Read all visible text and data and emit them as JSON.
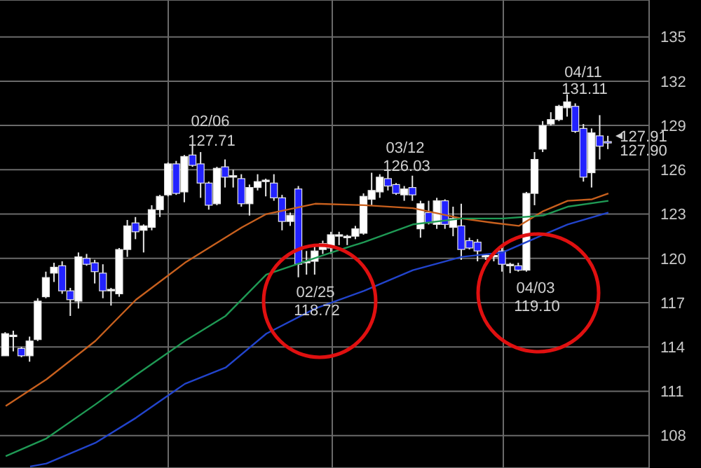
{
  "chart_data": {
    "type": "candlestick",
    "categories": [
      null,
      null,
      null,
      null,
      null,
      null,
      null,
      null,
      null,
      null,
      null,
      null,
      null,
      null,
      null,
      null,
      null,
      null,
      null,
      null,
      null,
      null,
      null,
      null,
      null,
      null,
      null,
      null,
      null,
      null,
      null,
      null,
      null,
      null,
      null,
      null,
      null,
      null,
      null,
      null,
      null,
      null,
      null,
      null,
      null,
      null,
      null,
      null,
      null,
      null,
      null,
      null,
      null,
      null,
      null,
      null,
      null,
      null,
      null,
      null,
      null,
      null,
      null,
      null,
      null,
      null,
      null,
      null,
      null,
      null,
      null,
      null,
      null,
      null,
      null
    ],
    "ohlc": [
      [
        113.4,
        115.0,
        113.4,
        114.9
      ],
      [
        114.7,
        115.1,
        113.7,
        114.8
      ],
      [
        113.9,
        114.0,
        113.3,
        113.4
      ],
      [
        113.4,
        114.7,
        113.0,
        114.4
      ],
      [
        114.5,
        117.3,
        114.4,
        117.1
      ],
      [
        117.4,
        119.1,
        117.3,
        118.7
      ],
      [
        119.0,
        119.7,
        118.4,
        119.4
      ],
      [
        119.5,
        119.8,
        117.6,
        117.8
      ],
      [
        117.8,
        118.0,
        116.1,
        117.2
      ],
      [
        117.1,
        120.4,
        116.6,
        120.1
      ],
      [
        120.0,
        120.3,
        119.5,
        119.6
      ],
      [
        119.7,
        119.9,
        118.3,
        119.1
      ],
      [
        119.0,
        119.6,
        117.3,
        117.8
      ],
      [
        117.8,
        118.0,
        116.8,
        117.9
      ],
      [
        117.6,
        120.7,
        117.4,
        120.6
      ],
      [
        120.6,
        122.6,
        120.1,
        122.2
      ],
      [
        122.4,
        122.8,
        121.3,
        121.8
      ],
      [
        121.9,
        122.3,
        120.4,
        122.2
      ],
      [
        122.1,
        123.6,
        121.9,
        123.3
      ],
      [
        123.3,
        124.3,
        122.8,
        124.2
      ],
      [
        124.3,
        126.5,
        124.2,
        126.4
      ],
      [
        126.4,
        126.6,
        124.3,
        124.4
      ],
      [
        124.5,
        127.0,
        123.8,
        126.9
      ],
      [
        127.0,
        127.71,
        126.2,
        126.3
      ],
      [
        126.4,
        127.2,
        124.1,
        125.1
      ],
      [
        125.1,
        125.2,
        123.3,
        123.6
      ],
      [
        123.7,
        126.2,
        123.6,
        126.1
      ],
      [
        126.2,
        126.7,
        124.8,
        125.5
      ],
      [
        125.5,
        126.0,
        124.8,
        125.6
      ],
      [
        125.4,
        125.7,
        123.5,
        123.7
      ],
      [
        123.7,
        125.0,
        122.9,
        124.8
      ],
      [
        124.8,
        125.7,
        124.6,
        125.2
      ],
      [
        125.2,
        125.4,
        124.2,
        125.3
      ],
      [
        125.1,
        125.7,
        123.9,
        124.1
      ],
      [
        124.1,
        124.3,
        121.9,
        122.5
      ],
      [
        122.5,
        123.1,
        122.2,
        122.9
      ],
      [
        124.7,
        124.9,
        118.72,
        119.6
      ],
      [
        119.7,
        120.5,
        118.9,
        119.8
      ],
      [
        119.8,
        120.8,
        118.9,
        120.5
      ],
      [
        120.6,
        121.2,
        120.3,
        121.0
      ],
      [
        120.7,
        121.8,
        120.3,
        121.6
      ],
      [
        121.5,
        121.8,
        120.9,
        121.6
      ],
      [
        121.4,
        121.6,
        120.9,
        121.5
      ],
      [
        121.5,
        122.2,
        121.3,
        122.0
      ],
      [
        121.7,
        124.4,
        121.6,
        124.2
      ],
      [
        124.0,
        125.8,
        123.6,
        124.6
      ],
      [
        124.5,
        125.7,
        124.1,
        125.5
      ],
      [
        125.4,
        126.03,
        124.6,
        124.9
      ],
      [
        125.0,
        125.1,
        124.3,
        124.4
      ],
      [
        124.3,
        124.9,
        123.9,
        124.7
      ],
      [
        124.8,
        125.6,
        123.9,
        124.3
      ],
      [
        122.0,
        123.9,
        121.4,
        123.7
      ],
      [
        123.1,
        123.9,
        122.3,
        122.4
      ],
      [
        122.3,
        124.1,
        122.0,
        123.9
      ],
      [
        123.9,
        124.0,
        122.0,
        122.3
      ],
      [
        122.1,
        123.5,
        121.5,
        122.7
      ],
      [
        122.2,
        123.7,
        119.9,
        120.6
      ],
      [
        121.2,
        121.4,
        120.6,
        120.7
      ],
      [
        121.1,
        121.3,
        119.8,
        120.5
      ],
      [
        120.1,
        120.3,
        119.9,
        120.2
      ],
      [
        120.1,
        120.3,
        119.8,
        120.2
      ],
      [
        120.5,
        120.7,
        119.1,
        119.6
      ],
      [
        119.5,
        119.7,
        119.0,
        119.6
      ],
      [
        119.5,
        119.7,
        119.1,
        119.2
      ],
      [
        119.2,
        124.5,
        119.1,
        124.4
      ],
      [
        124.4,
        127.2,
        123.6,
        126.7
      ],
      [
        127.4,
        129.3,
        127.2,
        129.0
      ],
      [
        129.1,
        129.9,
        129.0,
        129.4
      ],
      [
        129.4,
        130.4,
        129.3,
        130.3
      ],
      [
        130.2,
        131.11,
        129.6,
        130.6
      ],
      [
        130.3,
        130.5,
        128.5,
        128.6
      ],
      [
        128.8,
        129.1,
        125.2,
        125.5
      ],
      [
        125.8,
        128.8,
        124.8,
        128.5
      ],
      [
        128.3,
        129.7,
        126.7,
        127.6
      ],
      [
        127.91,
        128.3,
        127.4,
        127.9
      ]
    ],
    "colors": [
      "#ffffff",
      "#ffffff",
      "#2222ff",
      "#ffffff",
      "#ffffff",
      "#ffffff",
      "#ffffff",
      "#2222ff",
      "#2222ff",
      "#ffffff",
      "#2222ff",
      "#2222ff",
      "#2222ff",
      "#ffffff",
      "#ffffff",
      "#ffffff",
      "#2222ff",
      "#ffffff",
      "#ffffff",
      "#ffffff",
      "#ffffff",
      "#2222ff",
      "#ffffff",
      "#2222ff",
      "#2222ff",
      "#2222ff",
      "#ffffff",
      "#2222ff",
      "#ffffff",
      "#2222ff",
      "#ffffff",
      "#ffffff",
      "#ffffff",
      "#2222ff",
      "#2222ff",
      "#ffffff",
      "#2222ff",
      "#ffffff",
      "#ffffff",
      "#ffffff",
      "#ffffff",
      "#ffffff",
      "#ffffff",
      "#ffffff",
      "#ffffff",
      "#ffffff",
      "#ffffff",
      "#2222ff",
      "#2222ff",
      "#ffffff",
      "#2222ff",
      "#ffffff",
      "#2222ff",
      "#ffffff",
      "#2222ff",
      "#ffffff",
      "#2222ff",
      "#2222ff",
      "#2222ff",
      "#ffffff",
      "#ffffff",
      "#2222ff",
      "#ffffff",
      "#2222ff",
      "#ffffff",
      "#ffffff",
      "#ffffff",
      "#ffffff",
      "#ffffff",
      "#ffffff",
      "#2222ff",
      "#2222ff",
      "#ffffff",
      "#2222ff",
      "#2222ff"
    ],
    "series": [
      {
        "type": "line",
        "color": "#c8601e",
        "values": [
          110.0,
          null,
          null,
          null,
          null,
          111.8,
          null,
          null,
          null,
          null,
          null,
          114.4,
          null,
          null,
          null,
          null,
          117.2,
          null,
          null,
          null,
          null,
          null,
          119.7,
          null,
          null,
          null,
          null,
          null,
          null,
          122.1,
          null,
          null,
          123.0,
          null,
          null,
          null,
          null,
          null,
          123.7,
          null,
          null,
          null,
          null,
          null,
          123.6,
          null,
          null,
          null,
          null,
          null,
          123.4,
          null,
          null,
          null,
          null,
          null,
          122.7,
          null,
          null,
          null,
          122.4,
          null,
          null,
          122.2,
          null,
          null,
          123.2,
          null,
          null,
          123.9,
          null,
          null,
          124.0,
          null,
          124.4
        ]
      },
      {
        "type": "line",
        "color": "#1f9a55",
        "values": [
          106.6,
          null,
          null,
          null,
          null,
          107.8,
          null,
          null,
          null,
          null,
          null,
          110.1,
          null,
          null,
          null,
          null,
          112.1,
          null,
          null,
          null,
          null,
          null,
          114.4,
          null,
          null,
          null,
          null,
          116.1,
          null,
          null,
          null,
          null,
          118.9,
          null,
          null,
          null,
          null,
          null,
          null,
          null,
          120.4,
          null,
          null,
          null,
          121.1,
          null,
          null,
          null,
          null,
          null,
          122.3,
          null,
          null,
          null,
          null,
          null,
          122.7,
          null,
          null,
          null,
          null,
          122.7,
          null,
          null,
          null,
          null,
          122.9,
          null,
          null,
          123.5,
          null,
          null,
          null,
          null,
          123.9
        ]
      },
      {
        "type": "line",
        "color": "#2244cc",
        "values": [
          null,
          null,
          null,
          105.9,
          null,
          106.1,
          null,
          null,
          null,
          null,
          null,
          107.5,
          null,
          null,
          null,
          null,
          109.2,
          null,
          null,
          null,
          null,
          null,
          111.5,
          null,
          null,
          null,
          null,
          112.6,
          null,
          null,
          null,
          null,
          114.9,
          null,
          null,
          null,
          null,
          null,
          116.6,
          null,
          null,
          null,
          null,
          null,
          117.8,
          null,
          null,
          null,
          null,
          null,
          119.2,
          null,
          null,
          null,
          null,
          null,
          120.1,
          null,
          null,
          null,
          null,
          120.4,
          null,
          null,
          null,
          null,
          121.6,
          null,
          null,
          122.3,
          null,
          null,
          null,
          null,
          123.1
        ]
      }
    ],
    "ylim": [
      105.8,
      137.5
    ],
    "yticks": [
      108,
      111,
      114,
      117,
      120,
      123,
      126,
      129,
      132,
      135
    ],
    "grid": true,
    "tick_labels": "y",
    "annotations": [
      "02/06",
      "127.71",
      "02/25",
      "118.72",
      "03/12",
      "126.03",
      "04/03",
      "119.10",
      "04/11",
      "131.11",
      "127.91",
      "127.90"
    ]
  }
}
